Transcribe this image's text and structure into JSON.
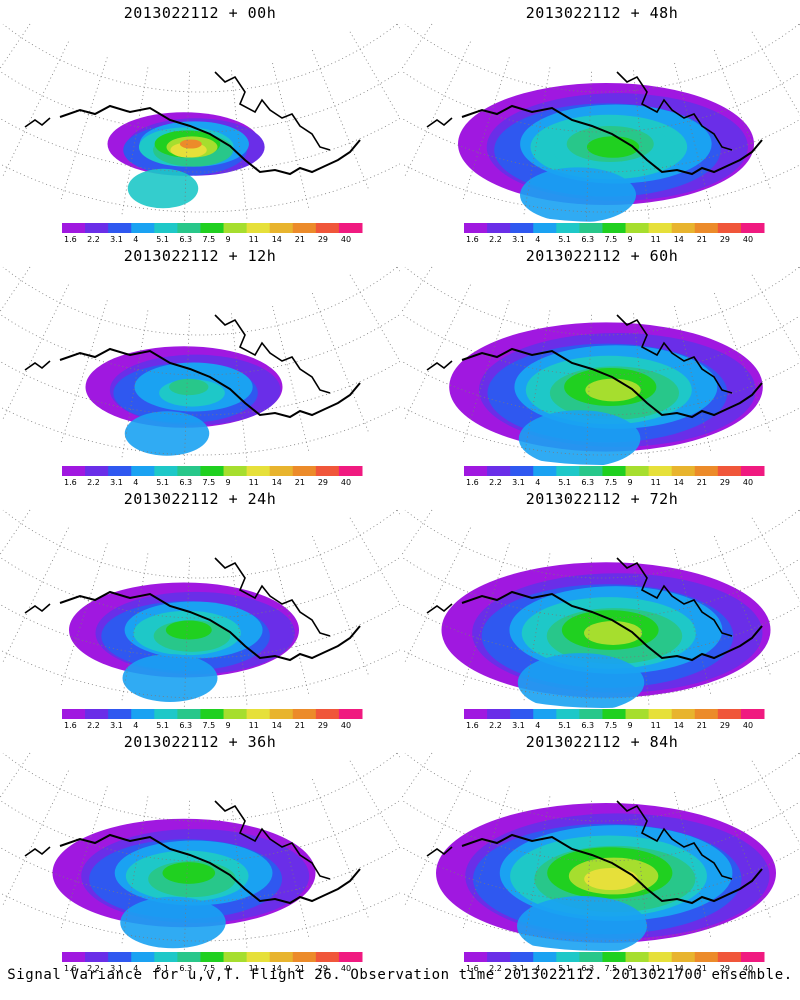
{
  "panels": [
    {
      "title": "2013022112 + 00h",
      "spread": 0.15,
      "intensity": 0.95
    },
    {
      "title": "2013022112 + 48h",
      "spread": 0.8,
      "intensity": 0.62
    },
    {
      "title": "2013022112 + 12h",
      "spread": 0.35,
      "intensity": 0.5
    },
    {
      "title": "2013022112 + 60h",
      "spread": 0.88,
      "intensity": 0.7
    },
    {
      "title": "2013022112 + 24h",
      "spread": 0.5,
      "intensity": 0.55
    },
    {
      "title": "2013022112 + 72h",
      "spread": 0.95,
      "intensity": 0.72
    },
    {
      "title": "2013022112 + 36h",
      "spread": 0.65,
      "intensity": 0.58
    },
    {
      "title": "2013022112 + 84h",
      "spread": 1.0,
      "intensity": 0.78
    }
  ],
  "colorbar": {
    "labels": [
      "1.6",
      "2.2",
      "3.1",
      "4",
      "5.1",
      "6.3",
      "7.5",
      "9",
      "11",
      "14",
      "21",
      "29",
      "40"
    ],
    "colors": [
      "#a018e0",
      "#6a2ee8",
      "#2f58f0",
      "#1aa2f2",
      "#1ec8c8",
      "#28c78a",
      "#20d020",
      "#a6de2e",
      "#e6e03a",
      "#e8b42e",
      "#ec8b2a",
      "#f0563a",
      "#f01a80"
    ]
  },
  "footer": "Signal Variance for u,v,T. Flight 26. Observation time 2013022112. 2013021700 ensemble."
}
